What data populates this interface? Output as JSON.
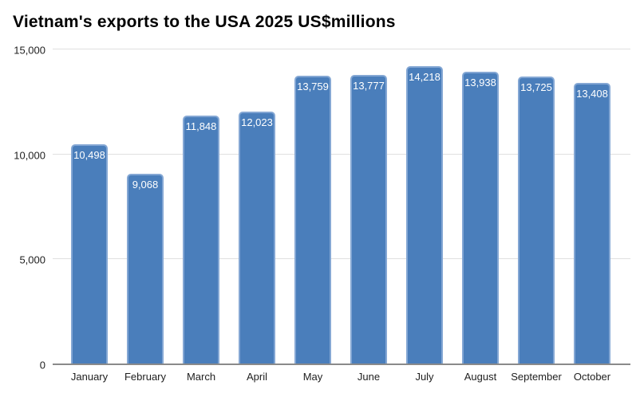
{
  "title": "Vietnam's exports to the USA 2025 US$millions",
  "colors": {
    "bar_fill": "#4a7ebb",
    "bar_border": "#84a7d4",
    "bar_value_text": "#ffffff",
    "gridline": "#e0e0e0",
    "axis_line": "#8a8a8a",
    "tick_text": "#212121",
    "title_text": "#000000",
    "background": "#ffffff"
  },
  "chart_data": {
    "type": "bar",
    "title": "Vietnam's exports to the USA 2025 US$millions",
    "categories": [
      "January",
      "February",
      "March",
      "April",
      "May",
      "June",
      "July",
      "August",
      "September",
      "October"
    ],
    "values": [
      10498,
      9068,
      11848,
      12023,
      13759,
      13777,
      14218,
      13938,
      13725,
      13408
    ],
    "value_labels": [
      "10,498",
      "9,068",
      "11,848",
      "12,023",
      "13,759",
      "13,777",
      "14,218",
      "13,938",
      "13,725",
      "13,408"
    ],
    "xlabel": "",
    "ylabel": "",
    "ylim": [
      0,
      15000
    ],
    "yticks": [
      {
        "value": 0,
        "label": "0"
      },
      {
        "value": 5000,
        "label": "5,000"
      },
      {
        "value": 10000,
        "label": "10,000"
      },
      {
        "value": 15000,
        "label": "15,000"
      }
    ],
    "grid": true,
    "legend": false
  }
}
